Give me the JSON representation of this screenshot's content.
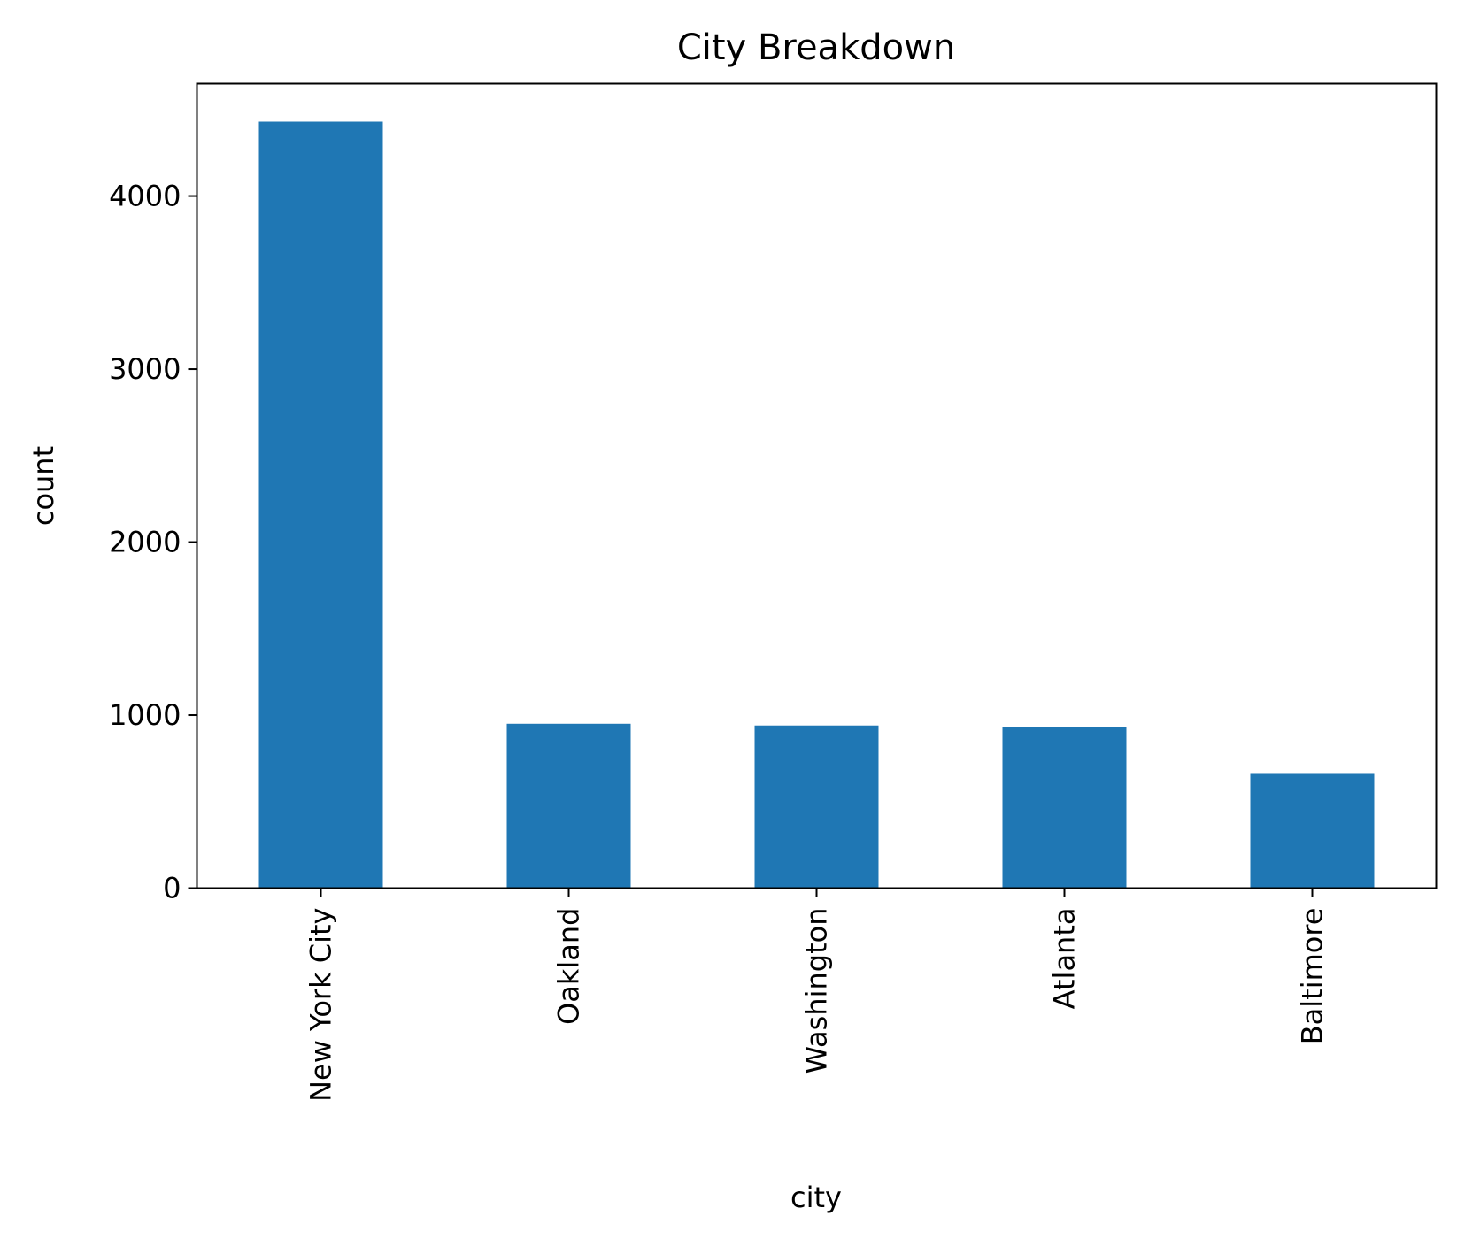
{
  "chart_data": {
    "type": "bar",
    "title": "City Breakdown",
    "xlabel": "city",
    "ylabel": "count",
    "categories": [
      "New York City",
      "Oakland",
      "Washington",
      "Atlanta",
      "Baltimore"
    ],
    "values": [
      4430,
      950,
      940,
      930,
      660
    ],
    "ylim": [
      0,
      4650
    ],
    "yticks": [
      0,
      1000,
      2000,
      3000,
      4000
    ],
    "bar_color": "#1f77b4",
    "grid": false,
    "legend": "none"
  }
}
